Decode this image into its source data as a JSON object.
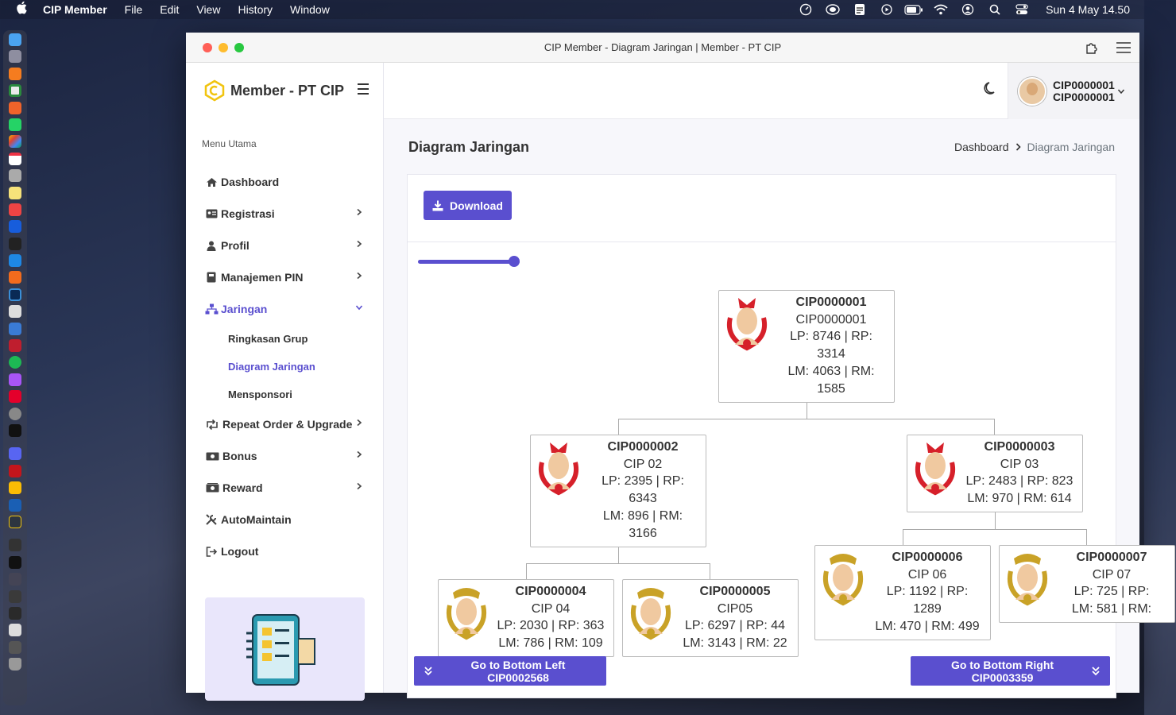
{
  "menubar": {
    "app_name": "CIP Member",
    "items": [
      "File",
      "Edit",
      "View",
      "History",
      "Window"
    ],
    "clock": "Sun 4 May  14.50"
  },
  "window": {
    "title": "CIP Member - Diagram Jaringan | Member - PT CIP"
  },
  "sidebar": {
    "brand": "Member - PT CIP",
    "menu_heading": "Menu Utama",
    "items": [
      {
        "label": "Dashboard",
        "icon": "home-icon"
      },
      {
        "label": "Registrasi",
        "icon": "id-card-icon"
      },
      {
        "label": "Profil",
        "icon": "user-icon"
      },
      {
        "label": "Manajemen PIN",
        "icon": "book-icon"
      },
      {
        "label": "Jaringan",
        "icon": "network-icon"
      },
      {
        "label": "Repeat Order & Upgrade",
        "icon": "retweet-icon"
      },
      {
        "label": "Bonus",
        "icon": "money-icon"
      },
      {
        "label": "Reward",
        "icon": "money-bill-icon"
      },
      {
        "label": "AutoMaintain",
        "icon": "tools-icon"
      },
      {
        "label": "Logout",
        "icon": "sign-out-icon"
      }
    ],
    "submenu": [
      "Ringkasan Grup",
      "Diagram Jaringan",
      "Mensponsori"
    ]
  },
  "user": {
    "line1": "CIP0000001",
    "line2": "CIP0000001"
  },
  "page": {
    "title": "Diagram Jaringan",
    "breadcrumb": [
      "Dashboard",
      "Diagram Jaringan"
    ],
    "download_label": "Download",
    "zoom_level": 1.0,
    "go_left_label": "Go to Bottom Left CIP0002568",
    "go_right_label": "Go to Bottom Right CIP0003359"
  },
  "colors": {
    "accent": "#5a4fcf",
    "badge_red": "#d6202a",
    "badge_gold": "#c9a227"
  },
  "tree": {
    "n1": {
      "id": "CIP0000001",
      "name": "CIP0000001",
      "l3": "LP: 8746 | RP:",
      "l4": "3314",
      "l5": "LM: 4063 | RM:",
      "l6": "1585",
      "rank": "red"
    },
    "n2": {
      "id": "CIP0000002",
      "name": "CIP 02",
      "l3": "LP: 2395 | RP:",
      "l4": "6343",
      "l5": "LM: 896 | RM:",
      "l6": "3166",
      "rank": "red"
    },
    "n3": {
      "id": "CIP0000003",
      "name": "CIP 03",
      "l3": "LP: 2483 | RP: 823",
      "l4": "LM: 970 | RM: 614",
      "rank": "red"
    },
    "n4": {
      "id": "CIP0000004",
      "name": "CIP 04",
      "l3": "LP: 2030 | RP: 363",
      "l4": "LM: 786 | RM: 109",
      "rank": "gold"
    },
    "n5": {
      "id": "CIP0000005",
      "name": "CIP05",
      "l3": "LP: 6297 | RP: 44",
      "l4": "LM: 3143 | RM: 22",
      "rank": "gold"
    },
    "n6": {
      "id": "CIP0000006",
      "name": "CIP 06",
      "l3": "LP: 1192 | RP:",
      "l4": "1289",
      "l5": "LM: 470 | RM: 499",
      "rank": "gold"
    },
    "n7": {
      "id": "CIP0000007",
      "name": "CIP 07",
      "l3": "LP: 725 | RP:",
      "l4": "LM: 581 | RM:",
      "rank": "gold"
    }
  }
}
